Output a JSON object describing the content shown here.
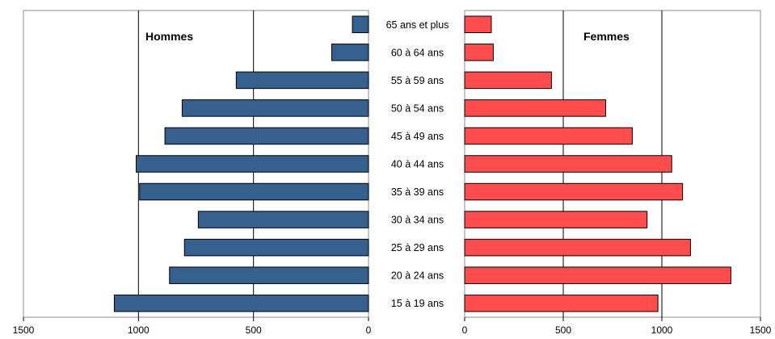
{
  "chart_data": [
    {
      "type": "bar",
      "orientation": "horizontal",
      "direction": "right-to-left",
      "title": "Hommes",
      "categories": [
        "65 ans et plus",
        "60 à 64 ans",
        "55 à 59 ans",
        "50 à 54 ans",
        "45 à 49 ans",
        "40 à 44 ans",
        "35 à 39 ans",
        "30 à 34 ans",
        "25 à 29 ans",
        "20 à 24 ans",
        "15 à 19 ans"
      ],
      "values": [
        70,
        160,
        575,
        810,
        885,
        1010,
        995,
        740,
        800,
        865,
        1105
      ],
      "xlim": [
        0,
        1500
      ],
      "xticks": [
        "1500",
        "1000",
        "500",
        "0"
      ],
      "color": "#36618f",
      "grid": true
    },
    {
      "type": "bar",
      "orientation": "horizontal",
      "direction": "left-to-right",
      "title": "Femmes",
      "categories": [
        "65 ans et plus",
        "60 à 64 ans",
        "55 à 59 ans",
        "50 à 54 ans",
        "45 à 49 ans",
        "40 à 44 ans",
        "35 à 39 ans",
        "30 à 34 ans",
        "25 à 29 ans",
        "20 à 24 ans",
        "15 à 19 ans"
      ],
      "values": [
        135,
        145,
        440,
        715,
        850,
        1050,
        1105,
        925,
        1145,
        1350,
        980
      ],
      "xlim": [
        0,
        1500
      ],
      "xticks": [
        "0",
        "500",
        "1000",
        "1500"
      ],
      "color": "#ff4d4d",
      "grid": true
    }
  ]
}
